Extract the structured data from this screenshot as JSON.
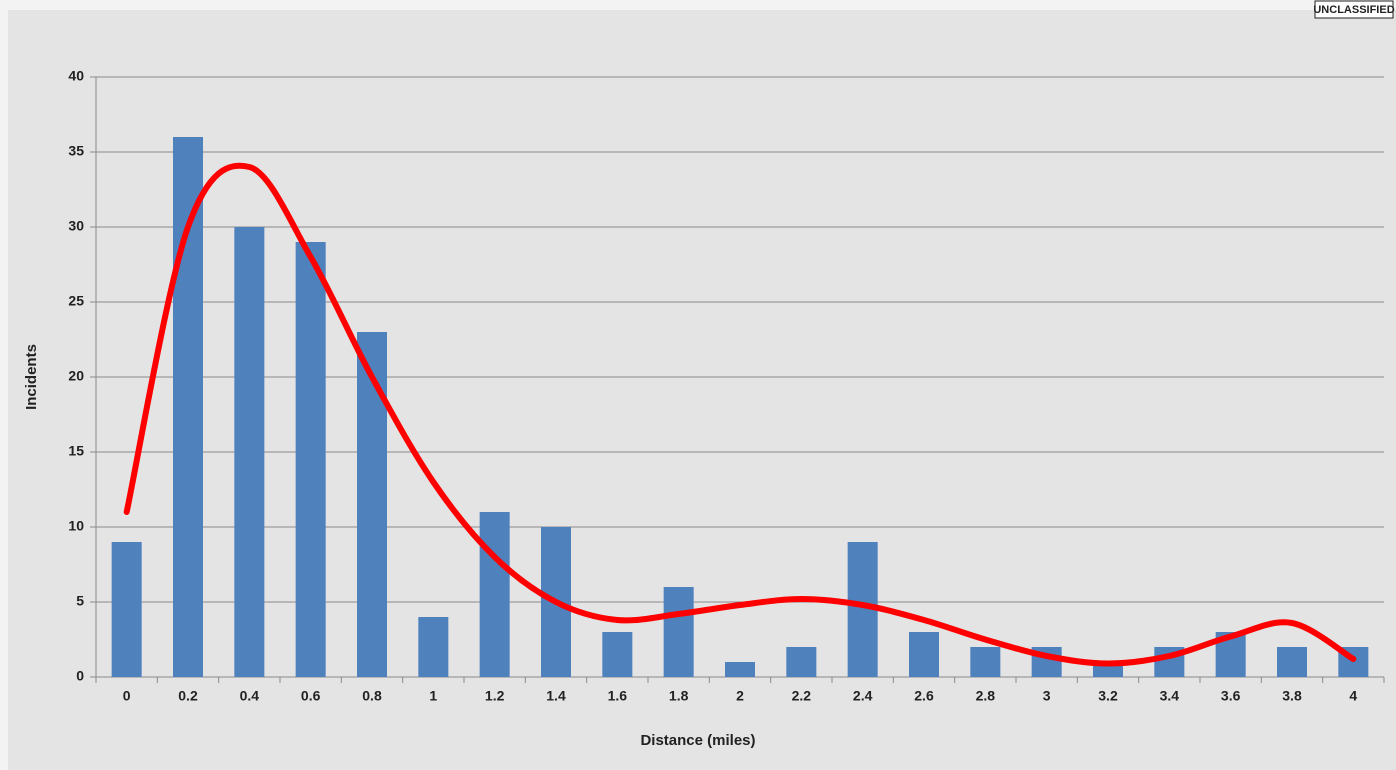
{
  "classification": "UNCLASSIFIED",
  "chart_data": {
    "type": "bar",
    "xlabel": "Distance (miles)",
    "ylabel": "Incidents",
    "categories": [
      "0",
      "0.2",
      "0.4",
      "0.6",
      "0.8",
      "1",
      "1.2",
      "1.4",
      "1.6",
      "1.8",
      "2",
      "2.2",
      "2.4",
      "2.6",
      "2.8",
      "3",
      "3.2",
      "3.4",
      "3.6",
      "3.8",
      "4"
    ],
    "series": [
      {
        "type": "bar",
        "color": "#4f81bd",
        "values": [
          9,
          36,
          30,
          29,
          23,
          4,
          11,
          10,
          3,
          6,
          1,
          2,
          9,
          3,
          2,
          2,
          1,
          2,
          3,
          2,
          2
        ]
      },
      {
        "type": "line",
        "color": "#ff0000",
        "values": [
          11,
          30,
          34,
          28,
          20,
          13,
          8,
          5,
          3.8,
          4.2,
          4.8,
          5.2,
          4.8,
          3.8,
          2.5,
          1.4,
          0.9,
          1.4,
          2.7,
          3.6,
          1.2
        ]
      }
    ],
    "ylim": [
      0,
      40
    ],
    "yticks": [
      0,
      5,
      10,
      15,
      20,
      25,
      30,
      35,
      40
    ],
    "grid": true
  }
}
